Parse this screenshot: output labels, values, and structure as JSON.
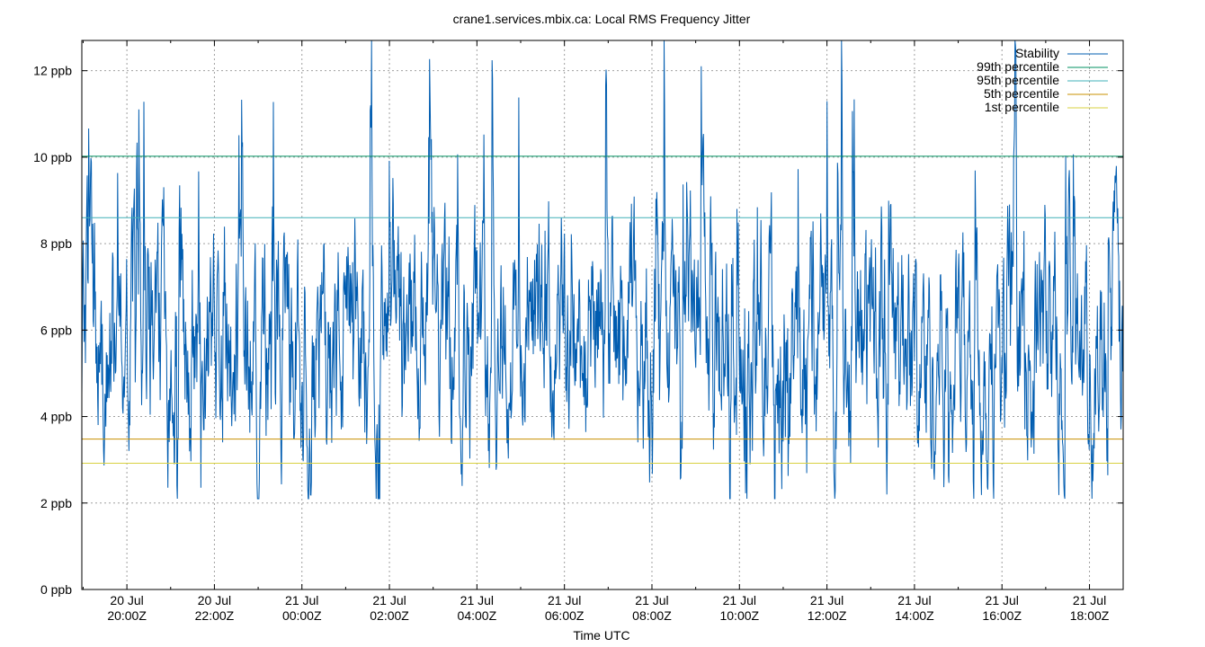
{
  "chart_data": {
    "type": "line",
    "title": "crane1.services.mbix.ca: Local RMS Frequency Jitter",
    "xlabel": "Time UTC",
    "ylabel": "",
    "x_unit": "hours since 19:00Z 20 Jul",
    "xlim": [
      18.97,
      42.77
    ],
    "ylim": [
      0,
      12.7
    ],
    "y_ticks": [
      {
        "value": 0,
        "label": "0 ppb"
      },
      {
        "value": 2,
        "label": "2 ppb"
      },
      {
        "value": 4,
        "label": "4 ppb"
      },
      {
        "value": 6,
        "label": "6 ppb"
      },
      {
        "value": 8,
        "label": "8 ppb"
      },
      {
        "value": 10,
        "label": "10 ppb"
      },
      {
        "value": 12,
        "label": "12 ppb"
      }
    ],
    "x_ticks": [
      {
        "value": 20,
        "line1": "20 Jul",
        "line2": "20:00Z"
      },
      {
        "value": 22,
        "line1": "20 Jul",
        "line2": "22:00Z"
      },
      {
        "value": 24,
        "line1": "21 Jul",
        "line2": "00:00Z"
      },
      {
        "value": 26,
        "line1": "21 Jul",
        "line2": "02:00Z"
      },
      {
        "value": 28,
        "line1": "21 Jul",
        "line2": "04:00Z"
      },
      {
        "value": 30,
        "line1": "21 Jul",
        "line2": "06:00Z"
      },
      {
        "value": 32,
        "line1": "21 Jul",
        "line2": "08:00Z"
      },
      {
        "value": 34,
        "line1": "21 Jul",
        "line2": "10:00Z"
      },
      {
        "value": 36,
        "line1": "21 Jul",
        "line2": "12:00Z"
      },
      {
        "value": 38,
        "line1": "21 Jul",
        "line2": "14:00Z"
      },
      {
        "value": 40,
        "line1": "21 Jul",
        "line2": "16:00Z"
      },
      {
        "value": 42,
        "line1": "21 Jul",
        "line2": "18:00Z"
      }
    ],
    "grid": true,
    "legend_position": "top-right",
    "series": [
      {
        "name": "Stability",
        "color": "#005cb0",
        "kind": "jitter",
        "mean": 5.7,
        "min": 2.1,
        "max": 12.7
      },
      {
        "name": "99th percentile",
        "color": "#009060",
        "kind": "constant",
        "value": 10.02
      },
      {
        "name": "95th percentile",
        "color": "#40b0b8",
        "kind": "constant",
        "value": 8.6
      },
      {
        "name": "5th percentile",
        "color": "#c89000",
        "kind": "constant",
        "value": 3.48
      },
      {
        "name": "1st percentile",
        "color": "#d8d040",
        "kind": "constant",
        "value": 2.92
      }
    ]
  }
}
